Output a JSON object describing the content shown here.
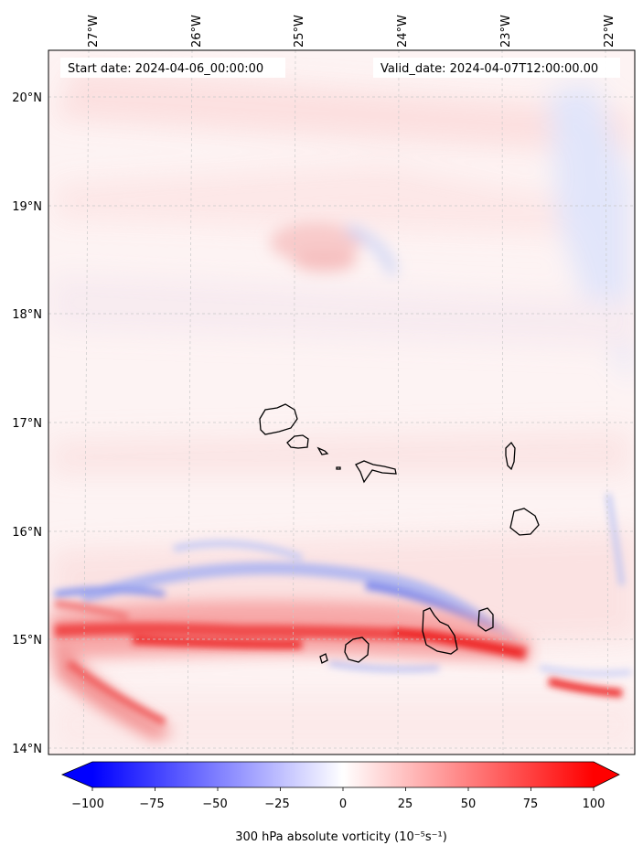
{
  "map": {
    "start_date": "Start date: 2024-04-06_00:00:00",
    "valid_date": "Valid_date: 2024-04-07T12:00:00.00",
    "lon_labels": [
      "27°W",
      "26°W",
      "25°W",
      "24°W",
      "23°W",
      "22°W"
    ],
    "lat_labels": [
      "20°N",
      "19°N",
      "18°N",
      "17°N",
      "16°N",
      "15°N",
      "14°N"
    ],
    "gridlines": true
  },
  "colorbar": {
    "ticks": [
      "−100",
      "−75",
      "−50",
      "−25",
      "0",
      "25",
      "50",
      "75",
      "100"
    ],
    "label": "300 hPa absolute vorticity (10⁻⁵s⁻¹)",
    "min": -100,
    "max": 100,
    "negative_color": "#0000ff",
    "positive_color": "#ff0000"
  },
  "features": {
    "strong_positive_band": "red",
    "negative_band": "blue"
  }
}
